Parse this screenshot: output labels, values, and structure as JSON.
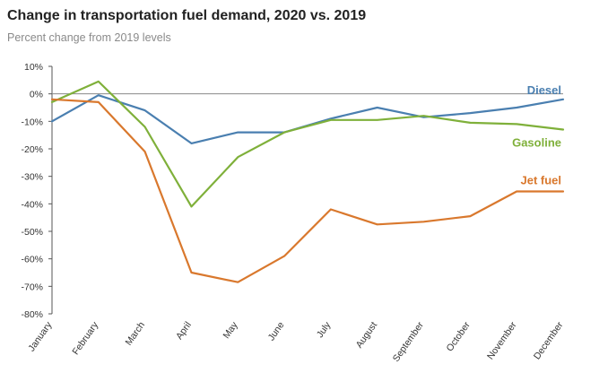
{
  "title": "Change in transportation fuel demand, 2020 vs. 2019",
  "subtitle": "Percent change from 2019 levels",
  "chart_data": {
    "type": "line",
    "title": "Change in transportation fuel demand, 2020 vs. 2019",
    "subtitle": "Percent change from 2019 levels",
    "xlabel": "",
    "ylabel": "",
    "categories": [
      "January",
      "February",
      "March",
      "April",
      "May",
      "June",
      "July",
      "August",
      "September",
      "October",
      "November",
      "December"
    ],
    "ylim": [
      -80,
      10
    ],
    "yticks": [
      10,
      0,
      -10,
      -20,
      -30,
      -40,
      -50,
      -60,
      -70,
      -80
    ],
    "ytick_labels": [
      "10%",
      "0%",
      "-10%",
      "-20%",
      "-30%",
      "-40%",
      "-50%",
      "-60%",
      "-70%",
      "-80%"
    ],
    "grid": false,
    "zero_line": true,
    "series": [
      {
        "name": "Diesel",
        "color": "#4a7fb0",
        "values": [
          -10,
          -0.5,
          -6,
          -18,
          -14,
          -14,
          -9,
          -5,
          -8.5,
          -7,
          -5,
          -2
        ]
      },
      {
        "name": "Gasoline",
        "color": "#7fb03a",
        "values": [
          -3,
          4.5,
          -12,
          -41,
          -23,
          -14,
          -9.5,
          -9.5,
          -8,
          -10.5,
          -11,
          -13
        ]
      },
      {
        "name": "Jet fuel",
        "color": "#d9782d",
        "values": [
          -2,
          -3,
          -21,
          -65,
          -68.5,
          -59,
          -42,
          -47.5,
          -46.5,
          -44.5,
          -35.5,
          -35.5
        ]
      }
    ]
  }
}
